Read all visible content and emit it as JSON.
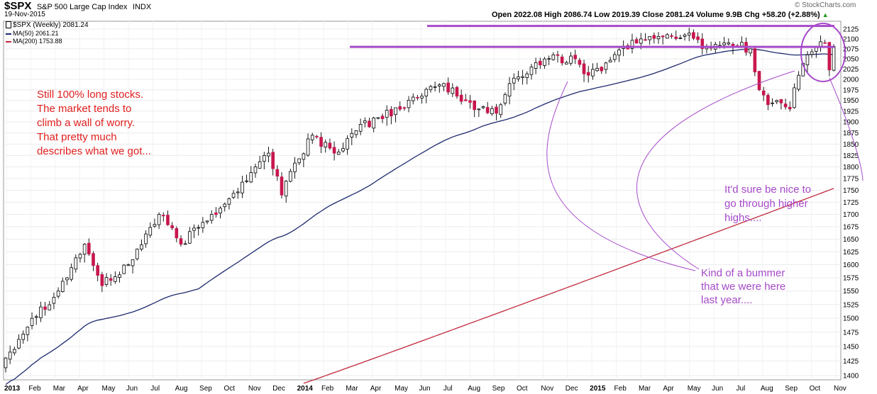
{
  "header": {
    "symbol": "$SPX",
    "name": "S&P 500 Large Cap Index",
    "exchange": "INDX",
    "date": "19-Nov-2015",
    "credit": "© StockCharts.com",
    "quote": "Open 2022.08  High 2086.74  Low 2019.39  Close 2081.24  Volume 9.9B  Chg +58.20 (+2.88%)",
    "arrow": "▲"
  },
  "legend": {
    "price": "$SPX (Weekly) 2081.24",
    "ma50": "MA(50) 2061.21",
    "ma200": "MA(200) 1753.88"
  },
  "annotations": {
    "left": [
      "Still 100% long stocks.",
      "The market tends to",
      "climb a wall of worry.",
      "That pretty much",
      "describes what we got..."
    ],
    "right_top": [
      "It'd sure be nice to",
      "go through higher",
      "highs...."
    ],
    "right_bottom": [
      "Kind of a bummer",
      "that we were here",
      "last year...."
    ]
  },
  "colors": {
    "up": "#ffffff",
    "down": "#c8174d",
    "ma50": "#1e2a6e",
    "ma200": "#c0283c",
    "resistance": "#a64ac9",
    "note_red": "#e02020",
    "note_purple": "#a64ac9"
  },
  "chart_data": {
    "type": "candlestick",
    "title": "$SPX S&P 500 Large Cap Index INDX",
    "timeframe": "Weekly",
    "ylim": [
      1385,
      2140
    ],
    "y_scale": "log",
    "y_ticks": [
      1400,
      1425,
      1450,
      1475,
      1500,
      1525,
      1550,
      1575,
      1600,
      1625,
      1650,
      1675,
      1700,
      1725,
      1750,
      1775,
      1800,
      1825,
      1850,
      1875,
      1900,
      1925,
      1950,
      1975,
      2000,
      2025,
      2050,
      2075,
      2100,
      2125
    ],
    "x_labels": [
      "2013",
      "Feb",
      "Mar",
      "Apr",
      "May",
      "Jun",
      "Jul",
      "Aug",
      "Sep",
      "Oct",
      "Nov",
      "Dec",
      "2014",
      "Feb",
      "Mar",
      "Apr",
      "May",
      "Jun",
      "Jul",
      "Aug",
      "Sep",
      "Oct",
      "Nov",
      "Dec",
      "2015",
      "Feb",
      "Mar",
      "Apr",
      "May",
      "Jun",
      "Jul",
      "Aug",
      "Sep",
      "Oct",
      "Nov"
    ],
    "resistance_levels": [
      2133,
      2080
    ],
    "key_points": [
      [
        0,
        1430
      ],
      [
        6,
        1500
      ],
      [
        12,
        1550
      ],
      [
        18,
        1640
      ],
      [
        22,
        1560
      ],
      [
        28,
        1600
      ],
      [
        35,
        1700
      ],
      [
        40,
        1640
      ],
      [
        47,
        1700
      ],
      [
        55,
        1770
      ],
      [
        57,
        1800
      ],
      [
        60,
        1830
      ],
      [
        62,
        1780
      ],
      [
        63,
        1740
      ],
      [
        65,
        1790
      ],
      [
        70,
        1870
      ],
      [
        75,
        1830
      ],
      [
        80,
        1880
      ],
      [
        85,
        1910
      ],
      [
        95,
        1960
      ],
      [
        100,
        1990
      ],
      [
        103,
        1960
      ],
      [
        108,
        1930
      ],
      [
        112,
        1920
      ],
      [
        115,
        1990
      ],
      [
        120,
        2030
      ],
      [
        125,
        2060
      ],
      [
        127,
        2040
      ],
      [
        130,
        2050
      ],
      [
        133,
        2010
      ],
      [
        137,
        2040
      ],
      [
        141,
        2080
      ],
      [
        145,
        2100
      ],
      [
        150,
        2105
      ],
      [
        155,
        2110
      ],
      [
        160,
        2080
      ],
      [
        165,
        2090
      ],
      [
        170,
        2075
      ],
      [
        172,
        1975
      ],
      [
        174,
        1940
      ],
      [
        176,
        1950
      ],
      [
        179,
        1930
      ],
      [
        181,
        2010
      ],
      [
        183,
        2060
      ],
      [
        185,
        2080
      ],
      [
        187,
        2090
      ],
      [
        188,
        2023
      ],
      [
        189,
        2081
      ]
    ],
    "ma50": {
      "name": "MA(50)",
      "last": 2061.21,
      "start": 1385,
      "end": 2061.21
    },
    "ma200": {
      "name": "MA(200)",
      "last": 1753.88,
      "start": 1387,
      "end": 1753.88
    }
  }
}
